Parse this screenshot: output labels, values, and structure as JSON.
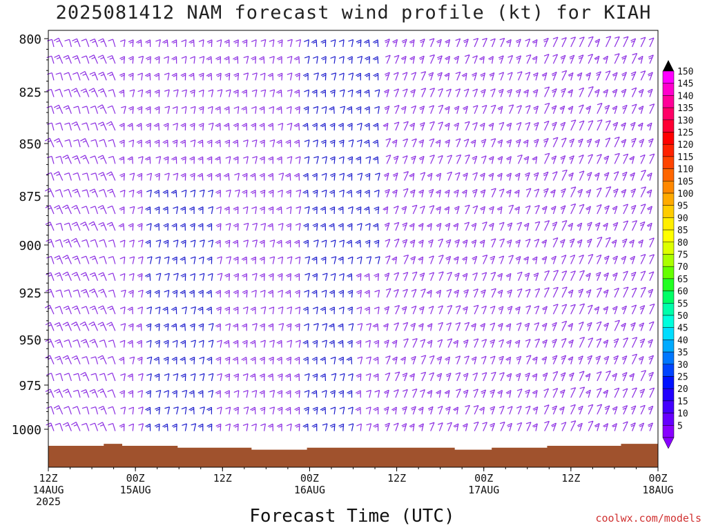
{
  "chart_data": {
    "type": "wind-barb-time-height",
    "title": "2025081412 NAM forecast wind profile (kt) for KIAH",
    "xlabel": "Forecast Time (UTC)",
    "x_ticks": [
      {
        "lines": [
          "12Z",
          "14AUG",
          "2025"
        ],
        "hours": 0
      },
      {
        "lines": [
          "00Z",
          "15AUG"
        ],
        "hours": 12
      },
      {
        "lines": [
          "12Z"
        ],
        "hours": 24
      },
      {
        "lines": [
          "00Z",
          "16AUG"
        ],
        "hours": 36
      },
      {
        "lines": [
          "12Z"
        ],
        "hours": 48
      },
      {
        "lines": [
          "00Z",
          "17AUG"
        ],
        "hours": 60
      },
      {
        "lines": [
          "12Z"
        ],
        "hours": 72
      },
      {
        "lines": [
          "00Z",
          "18AUG"
        ],
        "hours": 84
      }
    ],
    "xlim_hours": [
      0,
      84
    ],
    "y_ticks": [
      "800",
      "825",
      "850",
      "875",
      "900",
      "925",
      "950",
      "975",
      "1000"
    ],
    "ylim_hpa": [
      800,
      1020
    ],
    "colorbar": {
      "labels": [
        "150",
        "145",
        "140",
        "135",
        "130",
        "125",
        "120",
        "115",
        "110",
        "105",
        "100",
        "95",
        "90",
        "85",
        "80",
        "75",
        "70",
        "65",
        "60",
        "55",
        "50",
        "45",
        "40",
        "35",
        "30",
        "25",
        "20",
        "15",
        "10",
        "5"
      ],
      "colors": [
        "#ff00ff",
        "#ff00cc",
        "#ff0099",
        "#ff0066",
        "#ff0033",
        "#ff0000",
        "#ff2200",
        "#ff4400",
        "#ff6600",
        "#ff8800",
        "#ffaa00",
        "#ffcc00",
        "#ffee00",
        "#ffff00",
        "#ddff00",
        "#aaff00",
        "#66ff00",
        "#22ff22",
        "#00ff66",
        "#00ffaa",
        "#00ffdd",
        "#00ddff",
        "#00aaff",
        "#0077ff",
        "#0044ff",
        "#0011ff",
        "#2200ff",
        "#4400ff",
        "#6600ff",
        "#8800ff"
      ]
    },
    "barb_colors": {
      "light": "#8a2be2",
      "strong": "#1a1acc"
    },
    "surface_pressure_hpa": [
      1009,
      1009,
      1009,
      1008,
      1009,
      1009,
      1009,
      1010,
      1010,
      1010,
      1010,
      1011,
      1011,
      1011,
      1010,
      1010,
      1010,
      1010,
      1010,
      1010,
      1010,
      1010,
      1011,
      1011,
      1010,
      1010,
      1010,
      1009,
      1009,
      1009,
      1009,
      1008,
      1008
    ]
  },
  "credit": "coolwx.com/models"
}
